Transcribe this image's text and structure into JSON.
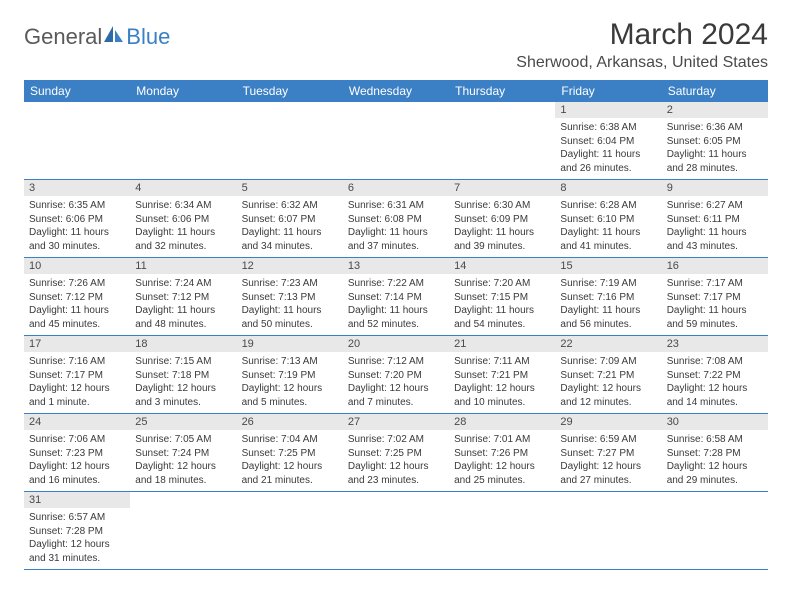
{
  "logo": {
    "text1": "General",
    "text2": "Blue"
  },
  "title": "March 2024",
  "location": "Sherwood, Arkansas, United States",
  "weekdays": [
    "Sunday",
    "Monday",
    "Tuesday",
    "Wednesday",
    "Thursday",
    "Friday",
    "Saturday"
  ],
  "colors": {
    "header_bg": "#3b7fc4",
    "daynum_bg": "#e8e8e8",
    "text": "#3a3a3a"
  },
  "weeks": [
    [
      null,
      null,
      null,
      null,
      null,
      {
        "n": "1",
        "sr": "6:38 AM",
        "ss": "6:04 PM",
        "dl": "11 hours and 26 minutes."
      },
      {
        "n": "2",
        "sr": "6:36 AM",
        "ss": "6:05 PM",
        "dl": "11 hours and 28 minutes."
      }
    ],
    [
      {
        "n": "3",
        "sr": "6:35 AM",
        "ss": "6:06 PM",
        "dl": "11 hours and 30 minutes."
      },
      {
        "n": "4",
        "sr": "6:34 AM",
        "ss": "6:06 PM",
        "dl": "11 hours and 32 minutes."
      },
      {
        "n": "5",
        "sr": "6:32 AM",
        "ss": "6:07 PM",
        "dl": "11 hours and 34 minutes."
      },
      {
        "n": "6",
        "sr": "6:31 AM",
        "ss": "6:08 PM",
        "dl": "11 hours and 37 minutes."
      },
      {
        "n": "7",
        "sr": "6:30 AM",
        "ss": "6:09 PM",
        "dl": "11 hours and 39 minutes."
      },
      {
        "n": "8",
        "sr": "6:28 AM",
        "ss": "6:10 PM",
        "dl": "11 hours and 41 minutes."
      },
      {
        "n": "9",
        "sr": "6:27 AM",
        "ss": "6:11 PM",
        "dl": "11 hours and 43 minutes."
      }
    ],
    [
      {
        "n": "10",
        "sr": "7:26 AM",
        "ss": "7:12 PM",
        "dl": "11 hours and 45 minutes."
      },
      {
        "n": "11",
        "sr": "7:24 AM",
        "ss": "7:12 PM",
        "dl": "11 hours and 48 minutes."
      },
      {
        "n": "12",
        "sr": "7:23 AM",
        "ss": "7:13 PM",
        "dl": "11 hours and 50 minutes."
      },
      {
        "n": "13",
        "sr": "7:22 AM",
        "ss": "7:14 PM",
        "dl": "11 hours and 52 minutes."
      },
      {
        "n": "14",
        "sr": "7:20 AM",
        "ss": "7:15 PM",
        "dl": "11 hours and 54 minutes."
      },
      {
        "n": "15",
        "sr": "7:19 AM",
        "ss": "7:16 PM",
        "dl": "11 hours and 56 minutes."
      },
      {
        "n": "16",
        "sr": "7:17 AM",
        "ss": "7:17 PM",
        "dl": "11 hours and 59 minutes."
      }
    ],
    [
      {
        "n": "17",
        "sr": "7:16 AM",
        "ss": "7:17 PM",
        "dl": "12 hours and 1 minute."
      },
      {
        "n": "18",
        "sr": "7:15 AM",
        "ss": "7:18 PM",
        "dl": "12 hours and 3 minutes."
      },
      {
        "n": "19",
        "sr": "7:13 AM",
        "ss": "7:19 PM",
        "dl": "12 hours and 5 minutes."
      },
      {
        "n": "20",
        "sr": "7:12 AM",
        "ss": "7:20 PM",
        "dl": "12 hours and 7 minutes."
      },
      {
        "n": "21",
        "sr": "7:11 AM",
        "ss": "7:21 PM",
        "dl": "12 hours and 10 minutes."
      },
      {
        "n": "22",
        "sr": "7:09 AM",
        "ss": "7:21 PM",
        "dl": "12 hours and 12 minutes."
      },
      {
        "n": "23",
        "sr": "7:08 AM",
        "ss": "7:22 PM",
        "dl": "12 hours and 14 minutes."
      }
    ],
    [
      {
        "n": "24",
        "sr": "7:06 AM",
        "ss": "7:23 PM",
        "dl": "12 hours and 16 minutes."
      },
      {
        "n": "25",
        "sr": "7:05 AM",
        "ss": "7:24 PM",
        "dl": "12 hours and 18 minutes."
      },
      {
        "n": "26",
        "sr": "7:04 AM",
        "ss": "7:25 PM",
        "dl": "12 hours and 21 minutes."
      },
      {
        "n": "27",
        "sr": "7:02 AM",
        "ss": "7:25 PM",
        "dl": "12 hours and 23 minutes."
      },
      {
        "n": "28",
        "sr": "7:01 AM",
        "ss": "7:26 PM",
        "dl": "12 hours and 25 minutes."
      },
      {
        "n": "29",
        "sr": "6:59 AM",
        "ss": "7:27 PM",
        "dl": "12 hours and 27 minutes."
      },
      {
        "n": "30",
        "sr": "6:58 AM",
        "ss": "7:28 PM",
        "dl": "12 hours and 29 minutes."
      }
    ],
    [
      {
        "n": "31",
        "sr": "6:57 AM",
        "ss": "7:28 PM",
        "dl": "12 hours and 31 minutes."
      },
      null,
      null,
      null,
      null,
      null,
      null
    ]
  ],
  "labels": {
    "sunrise": "Sunrise:",
    "sunset": "Sunset:",
    "daylight": "Daylight:"
  }
}
